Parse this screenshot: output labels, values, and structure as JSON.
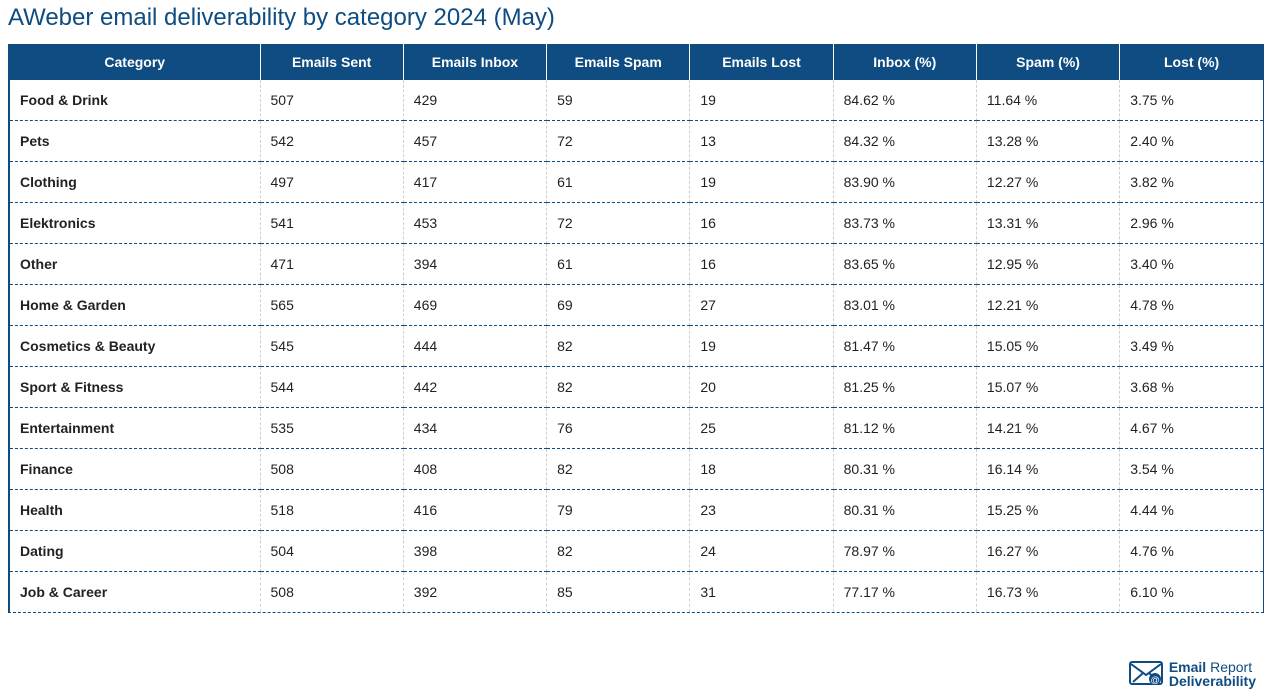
{
  "title": "AWeber email deliverability by category 2024 (May)",
  "header_bg": "#0f4c81",
  "header_fg": "#ffffff",
  "title_color": "#0f4c81",
  "border_color": "#0f4c81",
  "dash_color": "#cfcfcf",
  "columns": [
    "Category",
    "Emails Sent",
    "Emails Inbox",
    "Emails Spam",
    "Emails Lost",
    "Inbox (%)",
    "Spam (%)",
    "Lost (%)"
  ],
  "rows": [
    [
      "Food & Drink",
      "507",
      "429",
      "59",
      "19",
      "84.62 %",
      "11.64 %",
      "3.75 %"
    ],
    [
      "Pets",
      "542",
      "457",
      "72",
      "13",
      "84.32 %",
      "13.28 %",
      "2.40 %"
    ],
    [
      "Clothing",
      "497",
      "417",
      "61",
      "19",
      "83.90 %",
      "12.27 %",
      "3.82 %"
    ],
    [
      "Elektronics",
      "541",
      "453",
      "72",
      "16",
      "83.73 %",
      "13.31 %",
      "2.96 %"
    ],
    [
      "Other",
      "471",
      "394",
      "61",
      "16",
      "83.65 %",
      "12.95 %",
      "3.40 %"
    ],
    [
      "Home & Garden",
      "565",
      "469",
      "69",
      "27",
      "83.01 %",
      "12.21 %",
      "4.78 %"
    ],
    [
      "Cosmetics & Beauty",
      "545",
      "444",
      "82",
      "19",
      "81.47 %",
      "15.05 %",
      "3.49 %"
    ],
    [
      "Sport & Fitness",
      "544",
      "442",
      "82",
      "20",
      "81.25 %",
      "15.07 %",
      "3.68 %"
    ],
    [
      "Entertainment",
      "535",
      "434",
      "76",
      "25",
      "81.12 %",
      "14.21 %",
      "4.67 %"
    ],
    [
      "Finance",
      "508",
      "408",
      "82",
      "18",
      "80.31 %",
      "16.14 %",
      "3.54 %"
    ],
    [
      "Health",
      "518",
      "416",
      "79",
      "23",
      "80.31 %",
      "15.25 %",
      "4.44 %"
    ],
    [
      "Dating",
      "504",
      "398",
      "82",
      "24",
      "78.97 %",
      "16.27 %",
      "4.76 %"
    ],
    [
      "Job & Career",
      "508",
      "392",
      "85",
      "31",
      "77.17 %",
      "16.73 %",
      "6.10 %"
    ]
  ],
  "logo": {
    "line1_a": "Email",
    "line1_b": " Report",
    "line2": "Deliverability",
    "icon_color": "#0f4c81"
  }
}
